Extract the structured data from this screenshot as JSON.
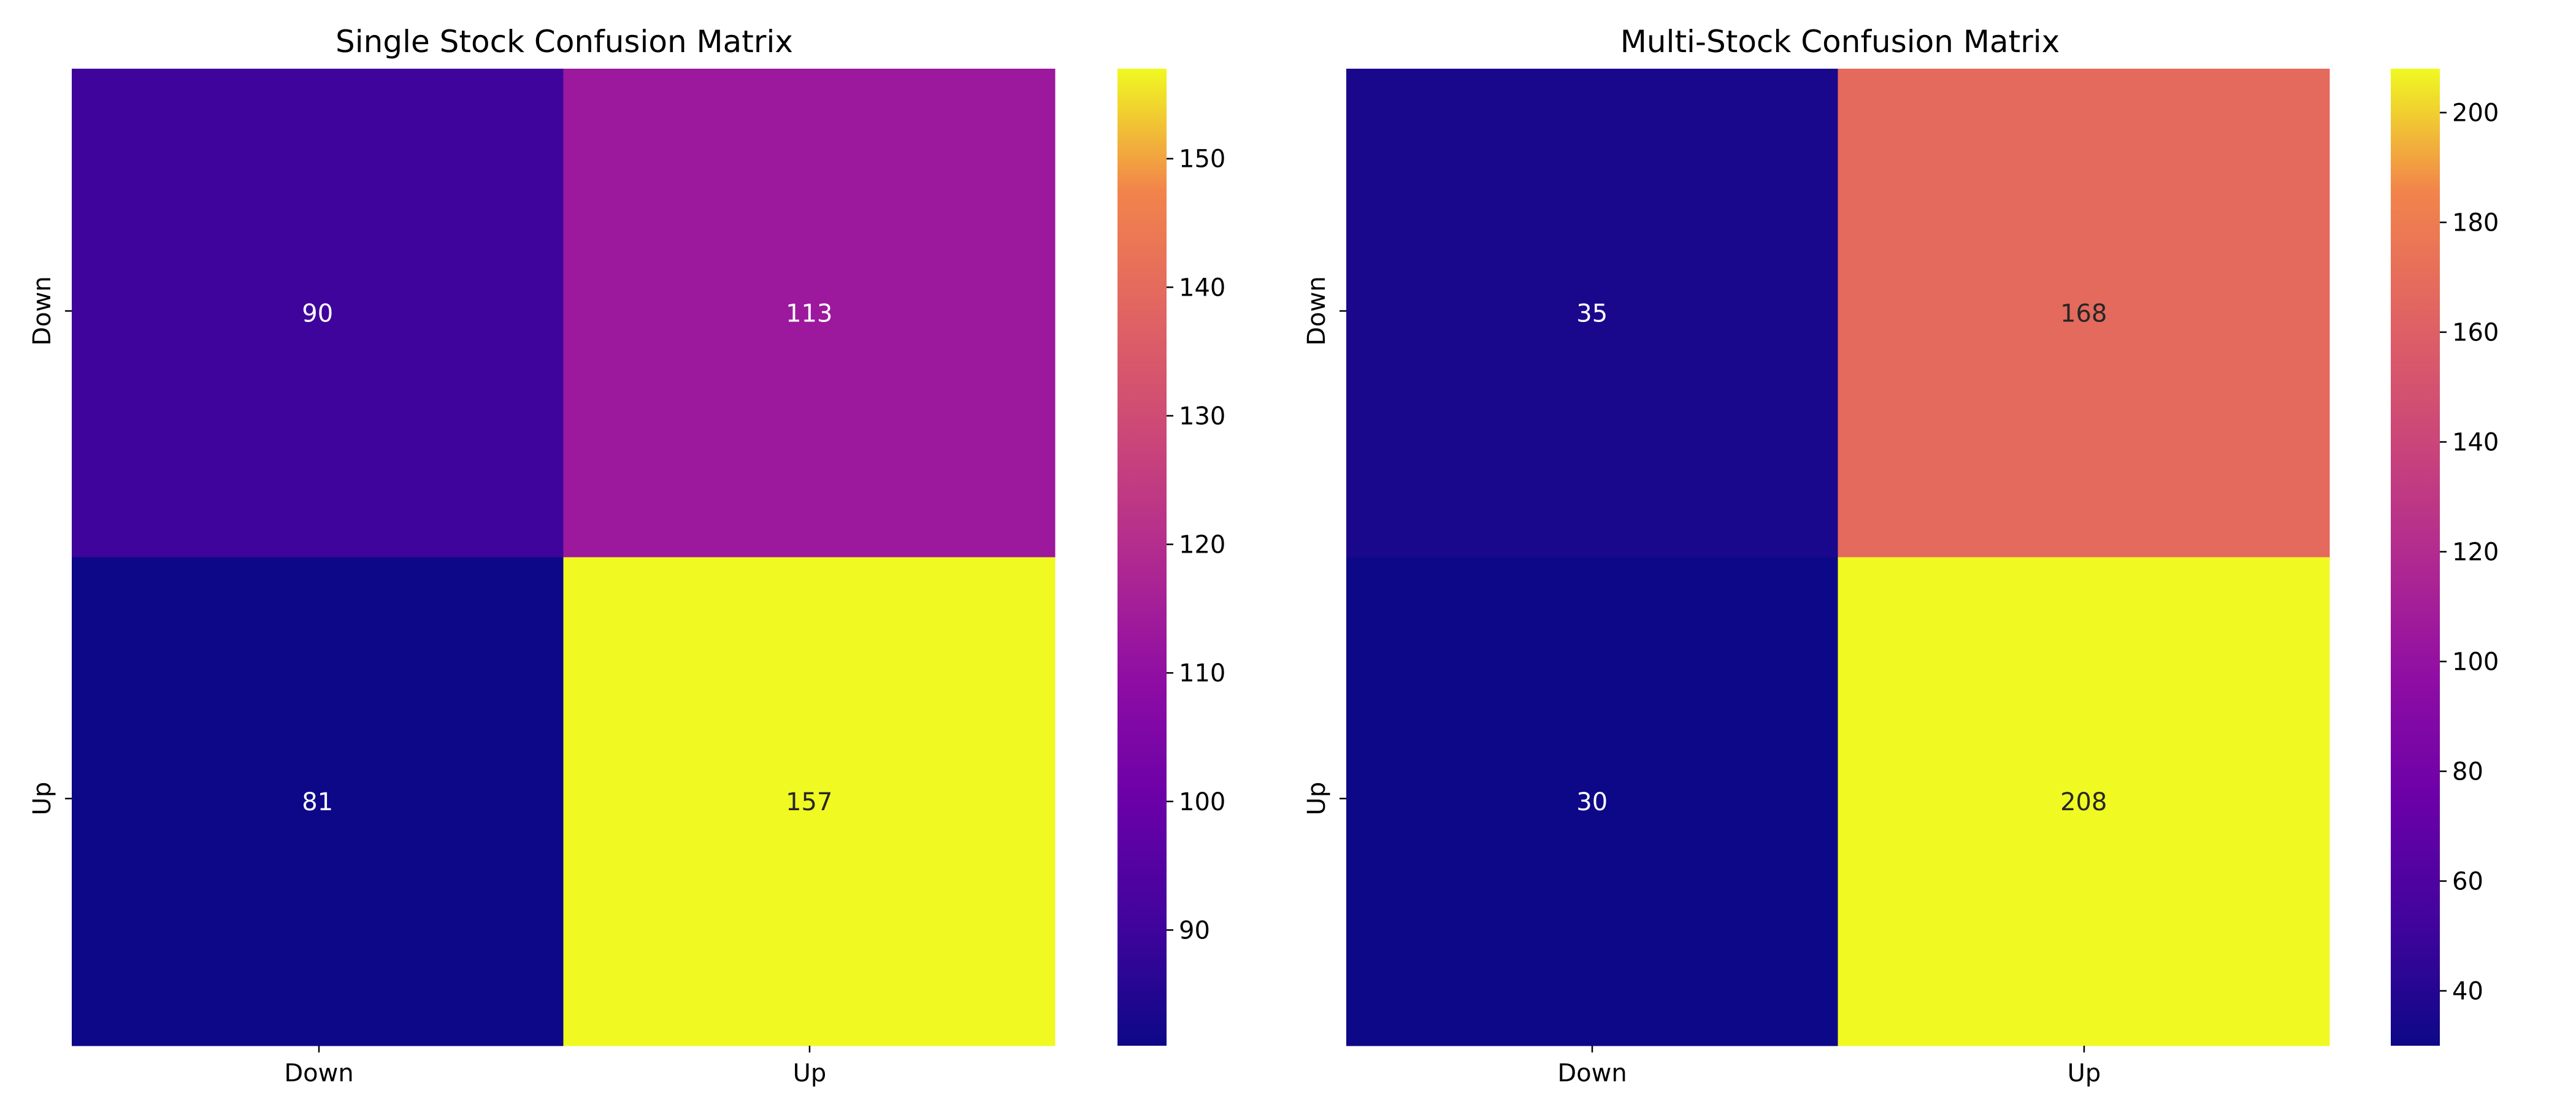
{
  "chart_data": [
    {
      "type": "heatmap",
      "title": "Single Stock Confusion Matrix",
      "x_categories": [
        "Down",
        "Up"
      ],
      "y_categories": [
        "Down",
        "Up"
      ],
      "values": [
        [
          90,
          113
        ],
        [
          81,
          157
        ]
      ],
      "colormap": "plasma",
      "color_range": [
        81,
        157
      ],
      "colorbar_ticks": [
        90,
        100,
        110,
        120,
        130,
        140,
        150
      ],
      "cell_label_colors": [
        [
          "#ffffff",
          "#ffffff"
        ],
        [
          "#ffffff",
          "#262626"
        ]
      ],
      "xlabel": "",
      "ylabel": "",
      "grid": false
    },
    {
      "type": "heatmap",
      "title": "Multi-Stock Confusion Matrix",
      "x_categories": [
        "Down",
        "Up"
      ],
      "y_categories": [
        "Down",
        "Up"
      ],
      "values": [
        [
          35,
          168
        ],
        [
          30,
          208
        ]
      ],
      "colormap": "plasma",
      "color_range": [
        30,
        208
      ],
      "colorbar_ticks": [
        40,
        60,
        80,
        100,
        120,
        140,
        160,
        180,
        200
      ],
      "cell_label_colors": [
        [
          "#ffffff",
          "#262626"
        ],
        [
          "#ffffff",
          "#262626"
        ]
      ],
      "xlabel": "",
      "ylabel": "",
      "grid": false
    }
  ]
}
